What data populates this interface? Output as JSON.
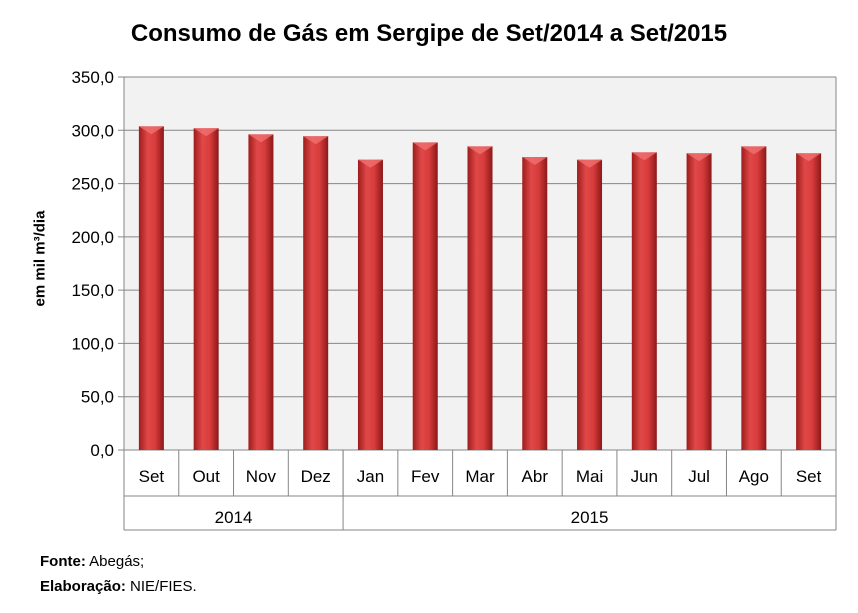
{
  "chart_data": {
    "type": "bar",
    "title": "Consumo de Gás em Sergipe de Set/2014 a Set/2015",
    "xlabel": "",
    "ylabel": "em mil m³/dia",
    "ylim": [
      0,
      350
    ],
    "yticks": [
      "0,0",
      "50,0",
      "100,0",
      "150,0",
      "200,0",
      "250,0",
      "300,0",
      "350,0"
    ],
    "grid": true,
    "categories": [
      "Set",
      "Out",
      "Nov",
      "Dez",
      "Jan",
      "Fev",
      "Mar",
      "Abr",
      "Mai",
      "Jun",
      "Jul",
      "Ago",
      "Set"
    ],
    "groups": [
      {
        "label": "2014",
        "count": 4
      },
      {
        "label": "2015",
        "count": 9
      }
    ],
    "values": [
      303.7,
      301.9,
      296.2,
      294.4,
      272.4,
      288.6,
      284.9,
      274.9,
      272.4,
      279.3,
      278.4,
      284.9,
      278.4
    ],
    "bar_color": "#d63a3a"
  },
  "footer": {
    "source_label": "Fonte:",
    "source_value": "Abegás;",
    "elab_label": "Elaboração:",
    "elab_value": "NIE/FIES."
  }
}
